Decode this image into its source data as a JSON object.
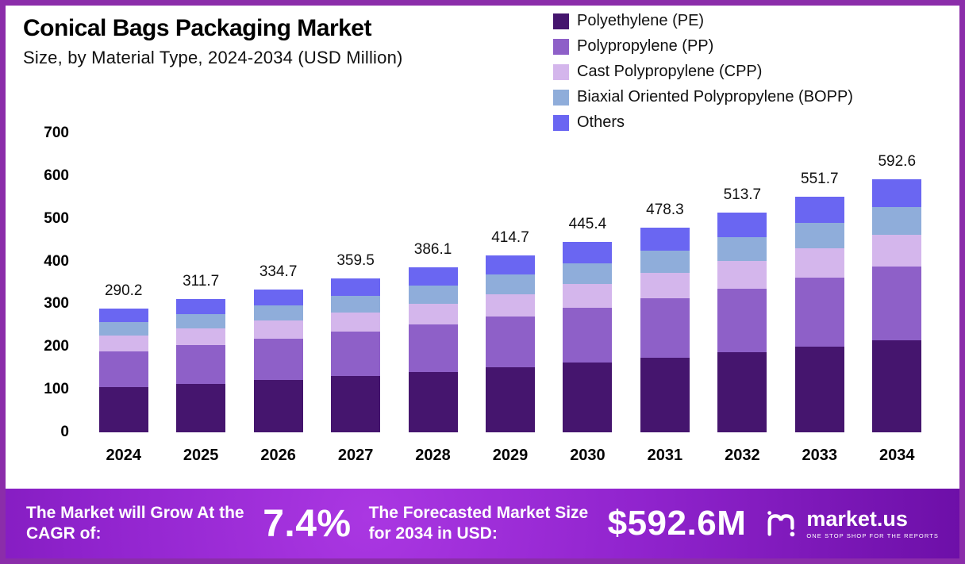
{
  "title": "Conical Bags Packaging Market",
  "subtitle": "Size, by Material Type, 2024-2034 (USD Million)",
  "colors": {
    "frame": "#8b2daa",
    "pe": "#45156e",
    "pp": "#8e60c8",
    "cpp": "#d4b6ec",
    "bopp": "#8fadda",
    "others": "#6a66f2"
  },
  "chart_data": {
    "type": "bar",
    "stacked": true,
    "grid": false,
    "legend_position": "top-right",
    "ylim": [
      0,
      700
    ],
    "yticks": [
      0,
      100,
      200,
      300,
      400,
      500,
      600,
      700
    ],
    "categories": [
      "2024",
      "2025",
      "2026",
      "2027",
      "2028",
      "2029",
      "2030",
      "2031",
      "2032",
      "2033",
      "2034"
    ],
    "totals": [
      "290.2",
      "311.7",
      "334.7",
      "359.5",
      "386.1",
      "414.7",
      "445.4",
      "478.3",
      "513.7",
      "551.7",
      "592.6"
    ],
    "series": [
      {
        "name": "Polyethylene (PE)",
        "color": "#45156e",
        "values": [
          105.9,
          113.8,
          122.2,
          131.2,
          140.9,
          151.4,
          162.6,
          174.6,
          187.5,
          201.4,
          216.3
        ]
      },
      {
        "name": "Polypropylene (PP)",
        "color": "#8e60c8",
        "values": [
          84.2,
          90.4,
          97.1,
          104.3,
          112.0,
          120.3,
          129.2,
          138.7,
          149.0,
          160.0,
          171.9
        ]
      },
      {
        "name": "Cast Polypropylene (CPP)",
        "color": "#d4b6ec",
        "values": [
          36.3,
          39.0,
          41.8,
          44.9,
          48.3,
          51.8,
          55.7,
          59.8,
          64.2,
          69.0,
          74.1
        ]
      },
      {
        "name": "Biaxial Oriented Polypropylene (BOPP)",
        "color": "#8fadda",
        "values": [
          31.9,
          34.3,
          36.8,
          39.5,
          42.5,
          45.6,
          49.0,
          52.6,
          56.5,
          60.7,
          65.2
        ]
      },
      {
        "name": "Others",
        "color": "#6a66f2",
        "values": [
          31.9,
          34.3,
          36.8,
          39.5,
          42.5,
          45.6,
          49.0,
          52.6,
          56.5,
          60.7,
          65.2
        ]
      }
    ]
  },
  "footer": {
    "cagr_label": "The Market will Grow At the CAGR of:",
    "cagr_value": "7.4%",
    "forecast_label": "The Forecasted Market Size for 2034 in USD:",
    "forecast_value": "$592.6M",
    "brand": "market.us",
    "brand_tagline": "One Stop Shop For The Reports"
  }
}
